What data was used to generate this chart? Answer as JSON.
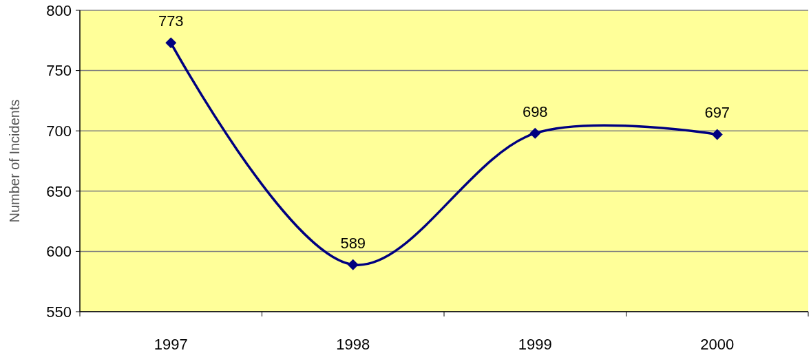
{
  "chart_data": {
    "type": "line",
    "ylabel": "Number of Incidents",
    "categories": [
      "1997",
      "1998",
      "1999",
      "2000"
    ],
    "series": [
      {
        "color": "#000080",
        "values": [
          773,
          589,
          698,
          697
        ]
      }
    ],
    "ylim": [
      550,
      800
    ],
    "yticks": [
      550,
      600,
      650,
      700,
      750,
      800
    ],
    "grid": "y",
    "data_labels": true,
    "marker": "diamond",
    "line_style": "solid"
  }
}
